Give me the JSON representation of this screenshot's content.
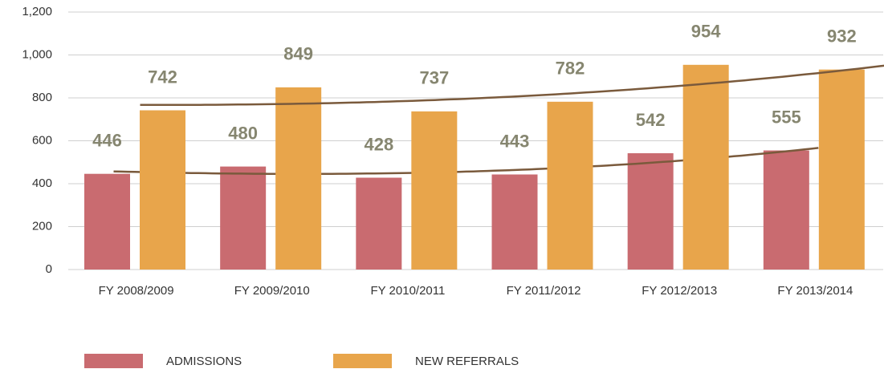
{
  "chart_data": {
    "type": "bar",
    "categories": [
      "FY 2008/2009",
      "FY 2009/2010",
      "FY 2010/2011",
      "FY 2011/2012",
      "FY 2012/2013",
      "FY 2013/2014"
    ],
    "series": [
      {
        "name": "ADMISSIONS",
        "color": "#c96b70",
        "values": [
          446,
          480,
          428,
          443,
          542,
          555
        ]
      },
      {
        "name": "NEW REFERRALS",
        "color": "#e8a54b",
        "values": [
          742,
          849,
          737,
          782,
          954,
          932
        ]
      }
    ],
    "ylim": [
      0,
      1200
    ],
    "yticks": [
      0,
      200,
      400,
      600,
      800,
      {
        "value": 1000,
        "label": "1,000"
      },
      {
        "value": 1200,
        "label": "1,200"
      }
    ],
    "grid": true,
    "trendline": true,
    "trendline_color": "#7a5a3c",
    "legend": "bottom"
  }
}
